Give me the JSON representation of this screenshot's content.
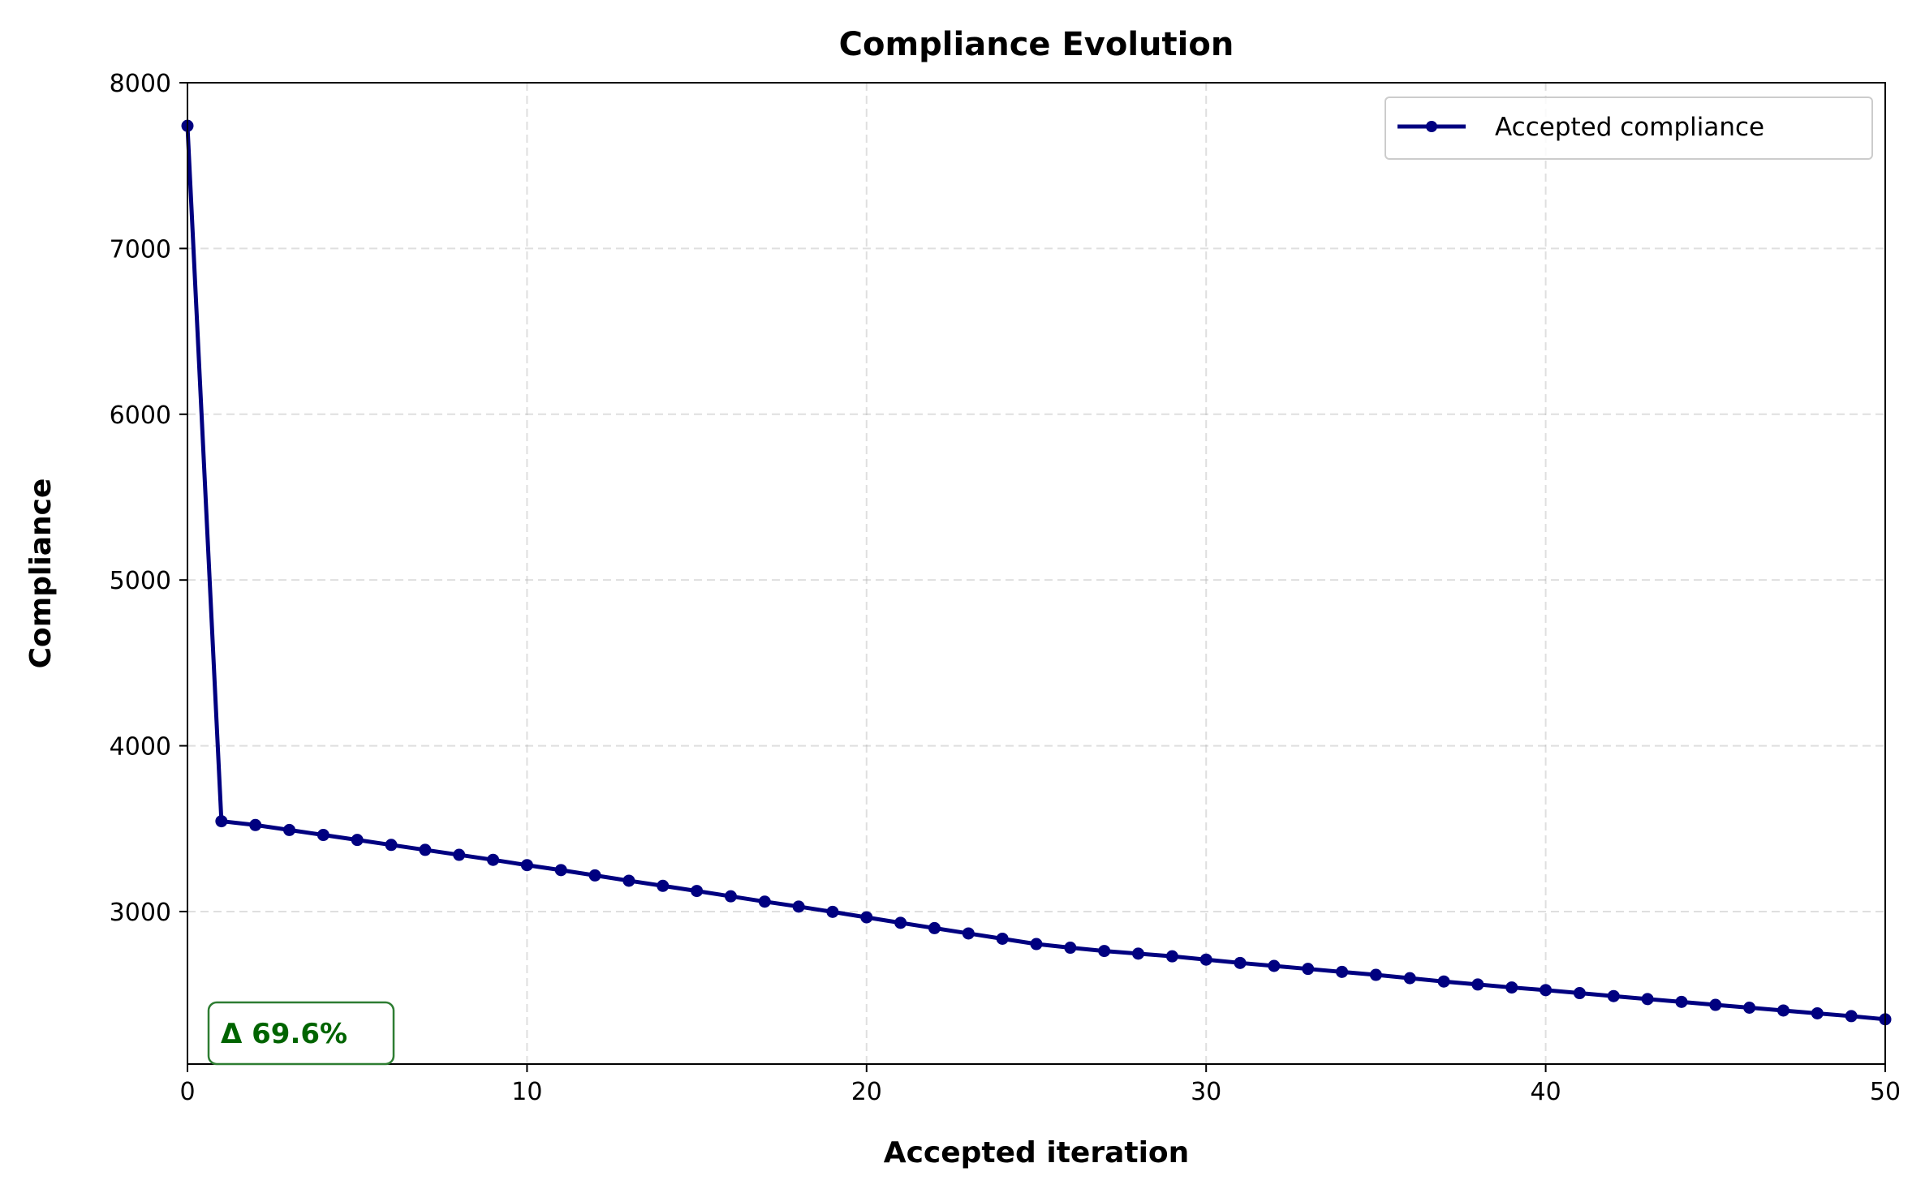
{
  "chart_data": {
    "type": "line",
    "title": "Compliance Evolution",
    "xlabel": "Accepted iteration",
    "ylabel": "Compliance",
    "xlim": [
      0,
      50
    ],
    "ylim": [
      2080,
      8000
    ],
    "x_ticks": [
      0,
      10,
      20,
      30,
      40,
      50
    ],
    "y_ticks": [
      3000,
      4000,
      5000,
      6000,
      7000,
      8000
    ],
    "grid": true,
    "legend_position": "top-right",
    "series": [
      {
        "name": "Accepted compliance",
        "color": "#000080",
        "marker": "circle",
        "x": [
          0,
          1,
          2,
          3,
          4,
          5,
          6,
          7,
          8,
          9,
          10,
          11,
          12,
          13,
          14,
          15,
          16,
          17,
          18,
          19,
          20,
          21,
          22,
          23,
          24,
          25,
          26,
          27,
          28,
          29,
          30,
          31,
          32,
          33,
          34,
          35,
          36,
          37,
          38,
          39,
          40,
          41,
          42,
          43,
          44,
          45,
          46,
          47,
          48,
          49,
          50
        ],
        "values": [
          7740,
          3545,
          3522,
          3492,
          3462,
          3432,
          3402,
          3372,
          3342,
          3312,
          3280,
          3250,
          3218,
          3186,
          3155,
          3124,
          3092,
          3060,
          3030,
          2998,
          2965,
          2932,
          2900,
          2868,
          2836,
          2804,
          2782,
          2762,
          2746,
          2730,
          2710,
          2690,
          2672,
          2654,
          2636,
          2618,
          2598,
          2578,
          2560,
          2542,
          2526,
          2508,
          2490,
          2472,
          2455,
          2437,
          2420,
          2403,
          2386,
          2369,
          2350
        ]
      }
    ],
    "annotation": {
      "text": "Δ 69.6%",
      "color": "#006400",
      "border_color": "#2e7d32",
      "position": "bottom-left"
    }
  }
}
